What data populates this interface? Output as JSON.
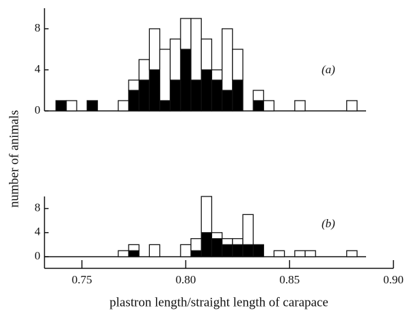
{
  "chart_data": [
    {
      "type": "histogram",
      "annotation": "(a)",
      "ylabel": "number of animals",
      "bins": [
        0.7375,
        0.7425,
        0.7475,
        0.7525,
        0.7575,
        0.7625,
        0.7675,
        0.7725,
        0.7775,
        0.7825,
        0.7875,
        0.7925,
        0.7975,
        0.8025,
        0.8075,
        0.8125,
        0.8175,
        0.8225,
        0.8275,
        0.8325,
        0.8375,
        0.8425,
        0.8475,
        0.8525,
        0.8575,
        0.8625,
        0.8675,
        0.8725,
        0.8775,
        0.8825
      ],
      "series": [
        {
          "color": "#000000",
          "values": [
            1,
            0,
            0,
            1,
            0,
            0,
            0,
            2,
            3,
            4,
            1,
            3,
            6,
            3,
            4,
            3,
            2,
            3,
            0,
            1,
            0,
            0,
            0,
            0,
            0,
            0,
            0,
            0,
            0
          ]
        },
        {
          "color": "#ffffff",
          "values": [
            0,
            1,
            0,
            0,
            0,
            0,
            1,
            1,
            2,
            4,
            5,
            4,
            3,
            6,
            3,
            1,
            6,
            3,
            0,
            1,
            1,
            0,
            0,
            1,
            0,
            0,
            0,
            0,
            1
          ]
        }
      ],
      "xlim": [
        0.73,
        0.9
      ],
      "ylim": [
        0,
        10
      ],
      "yticks": [
        0,
        4,
        8
      ]
    },
    {
      "type": "histogram",
      "annotation": "(b)",
      "xlabel": "plastron length/straight length of carapace",
      "bins": [
        0.7375,
        0.7425,
        0.7475,
        0.7525,
        0.7575,
        0.7625,
        0.7675,
        0.7725,
        0.7775,
        0.7825,
        0.7875,
        0.7925,
        0.7975,
        0.8025,
        0.8075,
        0.8125,
        0.8175,
        0.8225,
        0.8275,
        0.8325,
        0.8375,
        0.8425,
        0.8475,
        0.8525,
        0.8575,
        0.8625,
        0.8675,
        0.8725,
        0.8775,
        0.8825
      ],
      "series": [
        {
          "color": "#000000",
          "values": [
            0,
            0,
            0,
            0,
            0,
            0,
            0,
            1,
            0,
            0,
            0,
            0,
            0,
            1,
            4,
            3,
            2,
            2,
            2,
            2,
            0,
            0,
            0,
            0,
            0,
            0,
            0,
            0,
            0
          ]
        },
        {
          "color": "#ffffff",
          "values": [
            0,
            0,
            0,
            0,
            0,
            0,
            1,
            1,
            0,
            2,
            0,
            0,
            2,
            2,
            6,
            1,
            1,
            1,
            5,
            0,
            0,
            1,
            0,
            1,
            1,
            0,
            0,
            0,
            1
          ]
        }
      ],
      "xlim": [
        0.73,
        0.9
      ],
      "ylim": [
        0,
        10
      ],
      "yticks": [
        0,
        4,
        8
      ],
      "xticks": [
        0.75,
        {
          "value": 0.8,
          "label": "0.80"
        },
        0.85,
        {
          "value": 0.9,
          "label": "0.90"
        }
      ]
    }
  ]
}
